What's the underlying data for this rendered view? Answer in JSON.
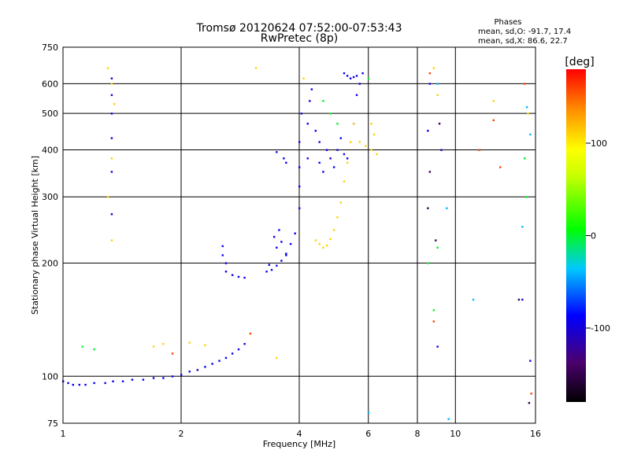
{
  "chart_data": {
    "type": "scatter",
    "title": "Tromsø 20120624 07:52:00-07:53:43",
    "subtitle": "RwPretec (8p)",
    "info": {
      "heading": "Phases",
      "line_o": "mean, sd,O: -91.7, 17.4",
      "line_x": "mean, sd,X:  86.6, 22.7"
    },
    "xlabel": "Frequency [MHz]",
    "ylabel": "Stationary phase Virtual Height [km]",
    "xscale": "log",
    "yscale": "log",
    "xlim": [
      1,
      16
    ],
    "ylim": [
      75,
      750
    ],
    "x_ticks": [
      1,
      2,
      4,
      6,
      8,
      10,
      16
    ],
    "x_tick_labels": [
      "1",
      "2",
      "4",
      "6",
      "8",
      "10",
      "16"
    ],
    "y_ticks": [
      75,
      100,
      200,
      300,
      400,
      500,
      600,
      750
    ],
    "y_tick_labels": [
      "75",
      "100",
      "200",
      "300",
      "400",
      "500",
      "600",
      "750"
    ],
    "grid": true,
    "colorbar": {
      "label": "[deg]",
      "range": [
        -180,
        180
      ],
      "ticks": [
        100,
        0,
        -100
      ],
      "tick_labels": [
        "100",
        "0",
        "-100"
      ]
    },
    "series": [
      {
        "phase_deg": -92,
        "points": [
          [
            1.0,
            97
          ],
          [
            1.03,
            96
          ],
          [
            1.06,
            95
          ],
          [
            1.1,
            95
          ],
          [
            1.14,
            95
          ],
          [
            1.2,
            96
          ],
          [
            1.28,
            96
          ],
          [
            1.34,
            97
          ],
          [
            1.42,
            97
          ],
          [
            1.5,
            98
          ],
          [
            1.6,
            98
          ],
          [
            1.7,
            99
          ],
          [
            1.8,
            99
          ],
          [
            1.9,
            100
          ],
          [
            2.0,
            101
          ],
          [
            2.1,
            103
          ],
          [
            2.2,
            104
          ],
          [
            2.3,
            106
          ],
          [
            2.4,
            108
          ],
          [
            2.5,
            110
          ],
          [
            2.6,
            112
          ],
          [
            2.7,
            115
          ],
          [
            2.8,
            118
          ],
          [
            2.9,
            122
          ],
          [
            1.33,
            620
          ],
          [
            1.33,
            560
          ],
          [
            1.33,
            500
          ],
          [
            1.33,
            430
          ],
          [
            1.33,
            350
          ],
          [
            1.33,
            270
          ],
          [
            2.6,
            190
          ],
          [
            2.7,
            186
          ],
          [
            2.8,
            184
          ],
          [
            2.9,
            183
          ],
          [
            2.6,
            200
          ],
          [
            2.55,
            210
          ],
          [
            2.55,
            222
          ],
          [
            3.3,
            190
          ],
          [
            3.4,
            192
          ],
          [
            3.5,
            197
          ],
          [
            3.6,
            203
          ],
          [
            3.7,
            212
          ],
          [
            3.8,
            225
          ],
          [
            3.9,
            240
          ],
          [
            3.5,
            220
          ],
          [
            3.45,
            235
          ],
          [
            3.55,
            245
          ],
          [
            3.6,
            228
          ],
          [
            3.7,
            210
          ],
          [
            3.35,
            198
          ],
          [
            4.0,
            280
          ],
          [
            4.0,
            320
          ],
          [
            4.0,
            360
          ],
          [
            4.0,
            420
          ],
          [
            4.05,
            500
          ],
          [
            3.65,
            380
          ],
          [
            3.7,
            370
          ],
          [
            3.5,
            395
          ],
          [
            4.2,
            380
          ],
          [
            4.2,
            470
          ],
          [
            4.25,
            540
          ],
          [
            4.3,
            580
          ],
          [
            4.4,
            450
          ],
          [
            4.5,
            420
          ],
          [
            4.5,
            370
          ],
          [
            4.6,
            350
          ],
          [
            4.7,
            400
          ],
          [
            4.8,
            380
          ],
          [
            4.9,
            360
          ],
          [
            5.0,
            400
          ],
          [
            5.1,
            430
          ],
          [
            5.2,
            390
          ],
          [
            5.3,
            380
          ],
          [
            5.5,
            470
          ],
          [
            5.6,
            560
          ],
          [
            5.7,
            600
          ],
          [
            5.8,
            640
          ],
          [
            5.2,
            640
          ],
          [
            5.3,
            630
          ],
          [
            5.4,
            620
          ],
          [
            5.5,
            625
          ],
          [
            5.6,
            630
          ],
          [
            8.6,
            600
          ],
          [
            8.5,
            450
          ],
          [
            9.2,
            400
          ],
          [
            9.0,
            120
          ],
          [
            14.8,
            160
          ],
          [
            15.5,
            110
          ]
        ]
      },
      {
        "phase_deg": 110,
        "points": [
          [
            1.3,
            660
          ],
          [
            1.33,
            600
          ],
          [
            1.35,
            530
          ],
          [
            1.33,
            380
          ],
          [
            1.3,
            300
          ],
          [
            1.33,
            230
          ],
          [
            4.4,
            230
          ],
          [
            4.5,
            225
          ],
          [
            4.6,
            220
          ],
          [
            4.7,
            223
          ],
          [
            4.8,
            232
          ],
          [
            4.9,
            245
          ],
          [
            5.0,
            265
          ],
          [
            5.1,
            290
          ],
          [
            5.2,
            330
          ],
          [
            5.3,
            370
          ],
          [
            5.4,
            420
          ],
          [
            5.5,
            470
          ],
          [
            5.7,
            420
          ],
          [
            5.9,
            410
          ],
          [
            6.1,
            400
          ],
          [
            6.3,
            390
          ],
          [
            6.2,
            440
          ],
          [
            6.1,
            470
          ],
          [
            1.7,
            120
          ],
          [
            1.8,
            122
          ],
          [
            2.1,
            123
          ],
          [
            2.3,
            121
          ],
          [
            3.1,
            660
          ],
          [
            3.5,
            112
          ],
          [
            4.1,
            620
          ],
          [
            8.8,
            660
          ],
          [
            9.0,
            560
          ],
          [
            12.5,
            540
          ],
          [
            15.3,
            500
          ]
        ]
      },
      {
        "phase_deg": 0,
        "points": [
          [
            1.12,
            120
          ],
          [
            1.2,
            118
          ],
          [
            4.6,
            540
          ],
          [
            4.8,
            500
          ],
          [
            5.0,
            470
          ],
          [
            6.0,
            620
          ],
          [
            9.0,
            220
          ],
          [
            8.5,
            200
          ],
          [
            8.8,
            150
          ],
          [
            15.0,
            380
          ],
          [
            15.2,
            300
          ]
        ]
      },
      {
        "phase_deg": 160,
        "points": [
          [
            8.6,
            640
          ],
          [
            11.5,
            400
          ],
          [
            12.5,
            480
          ],
          [
            13.0,
            360
          ],
          [
            8.8,
            140
          ],
          [
            15.6,
            90
          ],
          [
            3.0,
            130
          ],
          [
            1.9,
            115
          ],
          [
            15.0,
            600
          ]
        ]
      },
      {
        "phase_deg": -150,
        "points": [
          [
            8.6,
            350
          ],
          [
            8.5,
            280
          ],
          [
            9.1,
            470
          ],
          [
            14.5,
            160
          ],
          [
            8.9,
            230
          ],
          [
            15.4,
            85
          ]
        ]
      },
      {
        "phase_deg": -40,
        "points": [
          [
            9.0,
            600
          ],
          [
            9.5,
            280
          ],
          [
            15.2,
            520
          ],
          [
            15.5,
            440
          ],
          [
            11.1,
            160
          ],
          [
            14.8,
            250
          ],
          [
            9.6,
            77
          ],
          [
            6.0,
            80
          ]
        ]
      }
    ]
  }
}
